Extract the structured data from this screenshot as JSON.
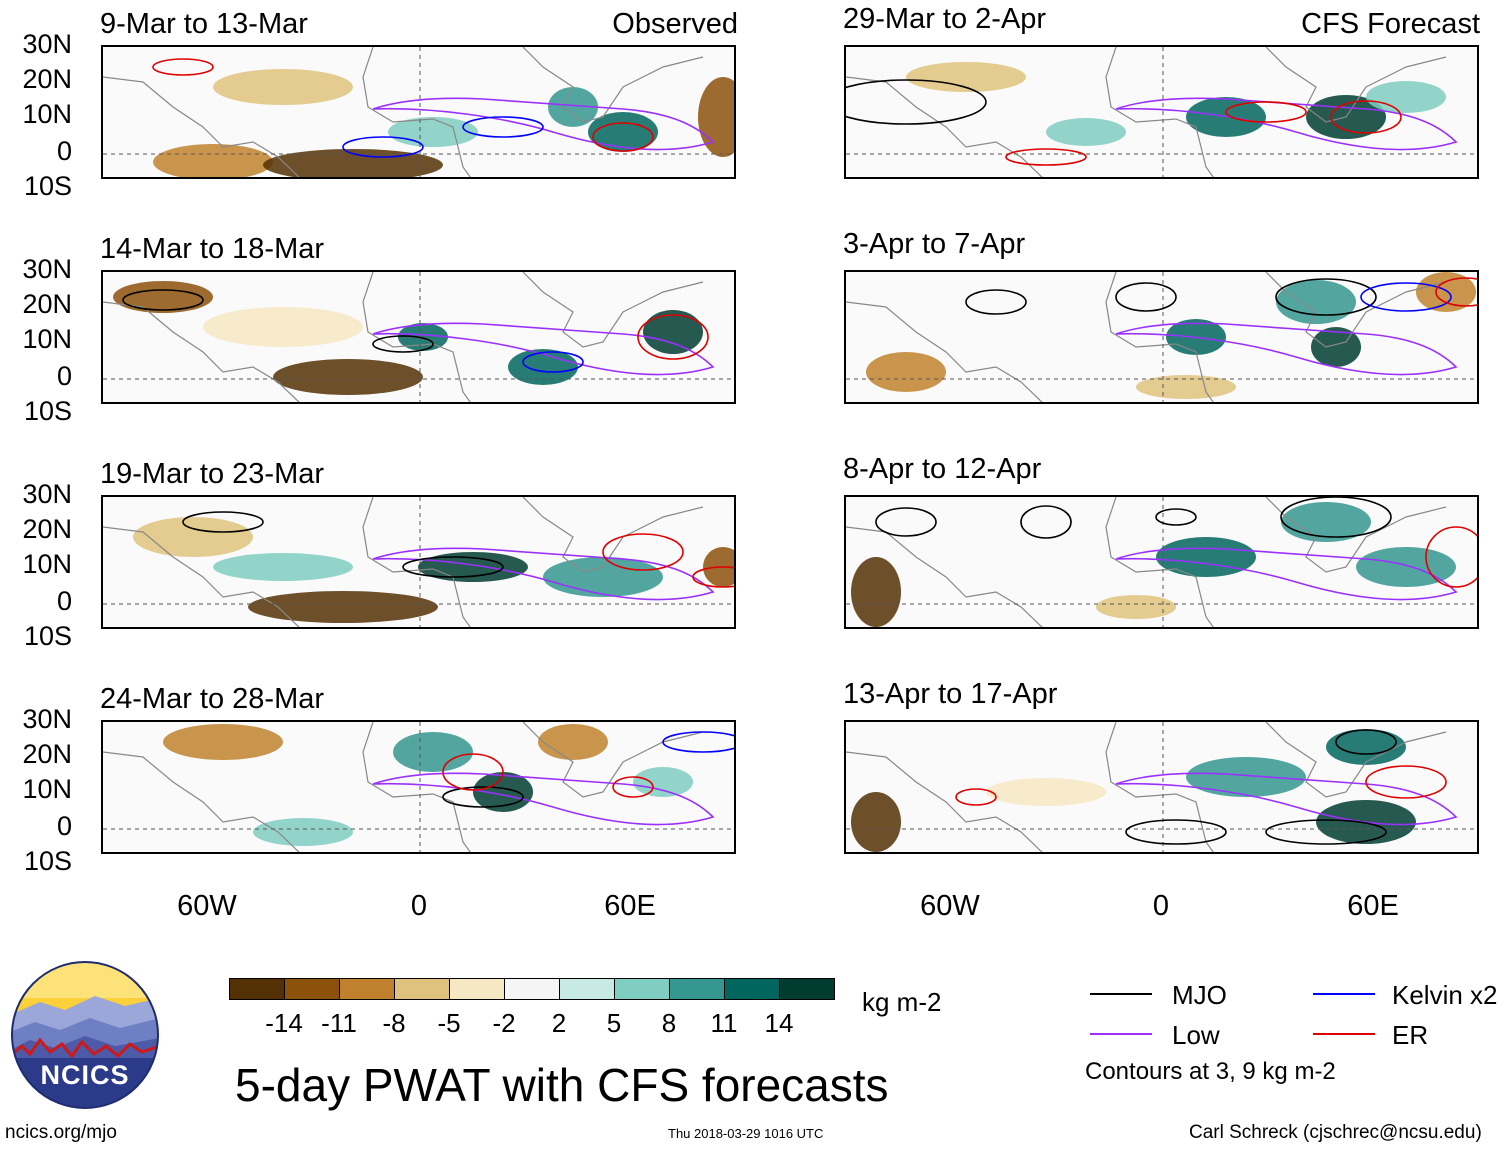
{
  "panels": [
    {
      "date": "9-Mar to 13-Mar",
      "corner": "Observed"
    },
    {
      "date": "14-Mar to 18-Mar",
      "corner": ""
    },
    {
      "date": "19-Mar to 23-Mar",
      "corner": ""
    },
    {
      "date": "24-Mar to 28-Mar",
      "corner": ""
    },
    {
      "date": "29-Mar to 2-Apr",
      "corner": "CFS Forecast"
    },
    {
      "date": "3-Apr to 7-Apr",
      "corner": ""
    },
    {
      "date": "8-Apr to 12-Apr",
      "corner": ""
    },
    {
      "date": "13-Apr to 17-Apr",
      "corner": ""
    }
  ],
  "lat_labels": [
    "30N",
    "20N",
    "10N",
    "0",
    "10S"
  ],
  "lon_labels": [
    "60W",
    "0",
    "60E"
  ],
  "colorbar": {
    "colors": [
      "#543005",
      "#8c510a",
      "#bf812d",
      "#dfc27d",
      "#f6e8c3",
      "#f5f5f5",
      "#c7eae5",
      "#80cdc1",
      "#35978f",
      "#01665e",
      "#003c30"
    ],
    "labels": [
      "-14",
      "-11",
      "-8",
      "-5",
      "-2",
      "2",
      "5",
      "8",
      "11",
      "14"
    ],
    "units": "kg m-2"
  },
  "legend": {
    "items": [
      {
        "label": "MJO",
        "color": "#000000"
      },
      {
        "label": "Kelvin x2",
        "color": "#0000ff"
      },
      {
        "label": "Low",
        "color": "#9b30ff"
      },
      {
        "label": "ER",
        "color": "#e00000"
      }
    ],
    "note": "Contours at 3, 9 kg m-2"
  },
  "title": "5-day PWAT with CFS forecasts",
  "logo_text": "NCICS",
  "footer": {
    "url": "ncics.org/mjo",
    "timestamp": "Thu 2018-03-29 1016 UTC",
    "credit": "Carl Schreck (cjschrec@ncsu.edu)"
  }
}
